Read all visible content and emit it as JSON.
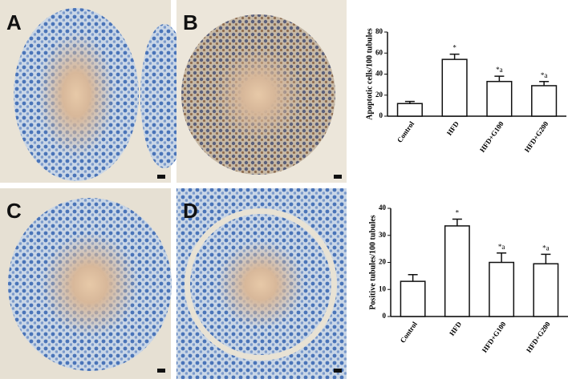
{
  "panels": [
    "A",
    "B",
    "C",
    "D"
  ],
  "chart_data": [
    {
      "type": "bar",
      "y_label": "Apoptotic cells/100 tubules",
      "categories": [
        "Control",
        "HFD",
        "HFD+G100",
        "HFD+G200"
      ],
      "values": [
        12,
        54,
        33,
        29
      ],
      "errors": [
        2,
        5,
        5,
        4
      ],
      "annotations": [
        null,
        "*",
        "*a",
        "*a"
      ],
      "color": "#ffffff",
      "ylim": [
        0,
        80
      ],
      "yticks": [
        0,
        20,
        40,
        60,
        80
      ]
    },
    {
      "type": "bar",
      "y_label": "Positive tubules/100 tubules",
      "categories": [
        "Control",
        "HFD",
        "HFD+G100",
        "HFD+G200"
      ],
      "values": [
        13,
        33.5,
        20,
        19.5
      ],
      "errors": [
        2.5,
        2.5,
        3.5,
        3.5
      ],
      "annotations": [
        null,
        "*",
        "*a",
        "*a"
      ],
      "color": "#ffffff",
      "ylim": [
        0,
        40
      ],
      "yticks": [
        0,
        10,
        20,
        30,
        40
      ]
    }
  ]
}
